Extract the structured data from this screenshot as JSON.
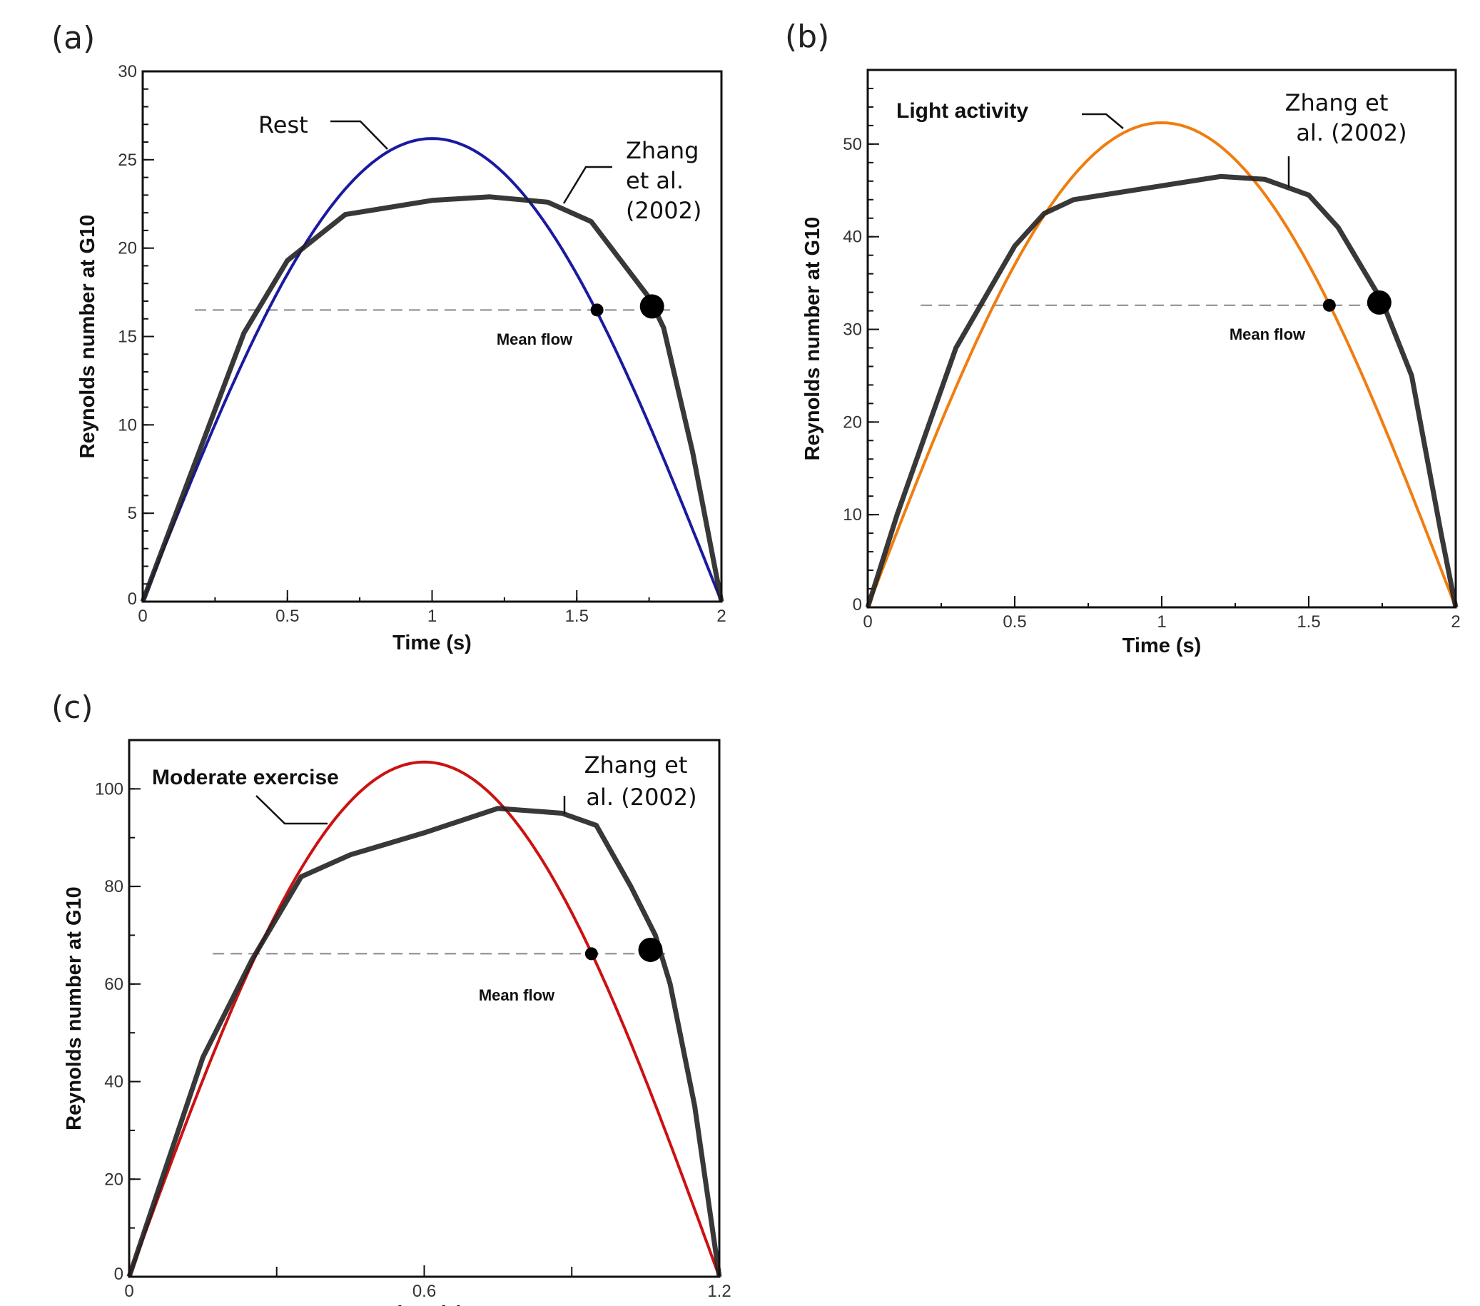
{
  "chart_data": [
    {
      "panel_label": "(a)",
      "type": "line",
      "xlabel": "Time (s)",
      "ylabel": "Reynolds number at G10",
      "xlim": [
        0,
        2
      ],
      "ylim": [
        0,
        30
      ],
      "xticks": [
        "0",
        "0.5",
        "1",
        "1.5",
        "2"
      ],
      "yticks": [
        "0",
        "5",
        "10",
        "15",
        "20",
        "25",
        "30"
      ],
      "grid": false,
      "model_color": "#1a1aa0",
      "series": [
        {
          "name": "Rest",
          "kind": "sine",
          "peak": 26.2,
          "period_half": 2
        },
        {
          "name": "Zhang et al. (2002)",
          "x": [
            0,
            0.35,
            0.5,
            0.7,
            1.0,
            1.2,
            1.4,
            1.55,
            1.75,
            1.8,
            1.9,
            2.0
          ],
          "y": [
            0,
            15.2,
            19.3,
            21.9,
            22.7,
            22.9,
            22.6,
            21.5,
            17.2,
            15.5,
            8.5,
            0
          ]
        }
      ],
      "mean_flow": {
        "label": "Mean flow",
        "value": 16.5,
        "x_range": [
          0.18,
          1.83
        ],
        "model_point": [
          1.57,
          16.5
        ],
        "zhang_point": [
          1.76,
          16.7
        ]
      },
      "annotations": {
        "model": "Rest",
        "zhang_lines": [
          "Zhang",
          "et al.",
          "(2002)"
        ]
      }
    },
    {
      "panel_label": "(b)",
      "type": "line",
      "xlabel": "Time (s)",
      "ylabel": "Reynolds number at G10",
      "xlim": [
        0,
        2
      ],
      "ylim": [
        0,
        58
      ],
      "xticks": [
        "0",
        "0.5",
        "1",
        "1.5",
        "2"
      ],
      "yticks": [
        "0",
        "10",
        "20",
        "30",
        "40",
        "50"
      ],
      "grid": false,
      "model_color": "#f07d10",
      "series": [
        {
          "name": "Light activity",
          "kind": "sine",
          "peak": 52.3,
          "period_half": 2
        },
        {
          "name": "Zhang et al. (2002)",
          "x": [
            0,
            0.1,
            0.3,
            0.5,
            0.6,
            0.7,
            1.0,
            1.2,
            1.35,
            1.5,
            1.6,
            1.75,
            1.85,
            1.95,
            2.0
          ],
          "y": [
            0,
            10,
            28,
            39,
            42.5,
            44,
            45.5,
            46.5,
            46.2,
            44.5,
            41,
            33,
            25,
            8,
            0
          ]
        }
      ],
      "mean_flow": {
        "label": "Mean flow",
        "value": 32.6,
        "x_range": [
          0.18,
          1.77
        ],
        "model_point": [
          1.57,
          32.6
        ],
        "zhang_point": [
          1.74,
          32.9
        ]
      },
      "annotations": {
        "model": "Light activity",
        "zhang_lines": [
          "Zhang et",
          "al. (2002)"
        ]
      }
    },
    {
      "panel_label": "(c)",
      "type": "line",
      "xlabel": "Time (s)",
      "ylabel": "Reynolds number at G10",
      "xlim": [
        0,
        1.2
      ],
      "ylim": [
        0,
        110
      ],
      "xticks": [
        "0",
        "0.6",
        "1.2"
      ],
      "yticks": [
        "0",
        "20",
        "40",
        "60",
        "80",
        "100"
      ],
      "grid": false,
      "model_color": "#cc1111",
      "series": [
        {
          "name": "Moderate exercise",
          "kind": "sine",
          "peak": 105.5,
          "period_half": 1.2
        },
        {
          "name": "Zhang et al. (2002)",
          "x": [
            0,
            0.15,
            0.25,
            0.35,
            0.45,
            0.6,
            0.75,
            0.88,
            0.95,
            1.02,
            1.07,
            1.1,
            1.15,
            1.2
          ],
          "y": [
            0,
            45,
            65,
            82,
            86.5,
            91,
            96,
            95,
            92.5,
            80,
            70,
            60,
            35,
            0
          ]
        }
      ],
      "mean_flow": {
        "label": "Mean flow",
        "value": 66.2,
        "x_range": [
          0.17,
          1.09
        ],
        "model_point": [
          0.94,
          66.2
        ],
        "zhang_point": [
          1.06,
          67
        ]
      },
      "annotations": {
        "model": "Moderate exercise",
        "zhang_lines": [
          "Zhang et",
          "al. (2002)"
        ]
      }
    }
  ]
}
